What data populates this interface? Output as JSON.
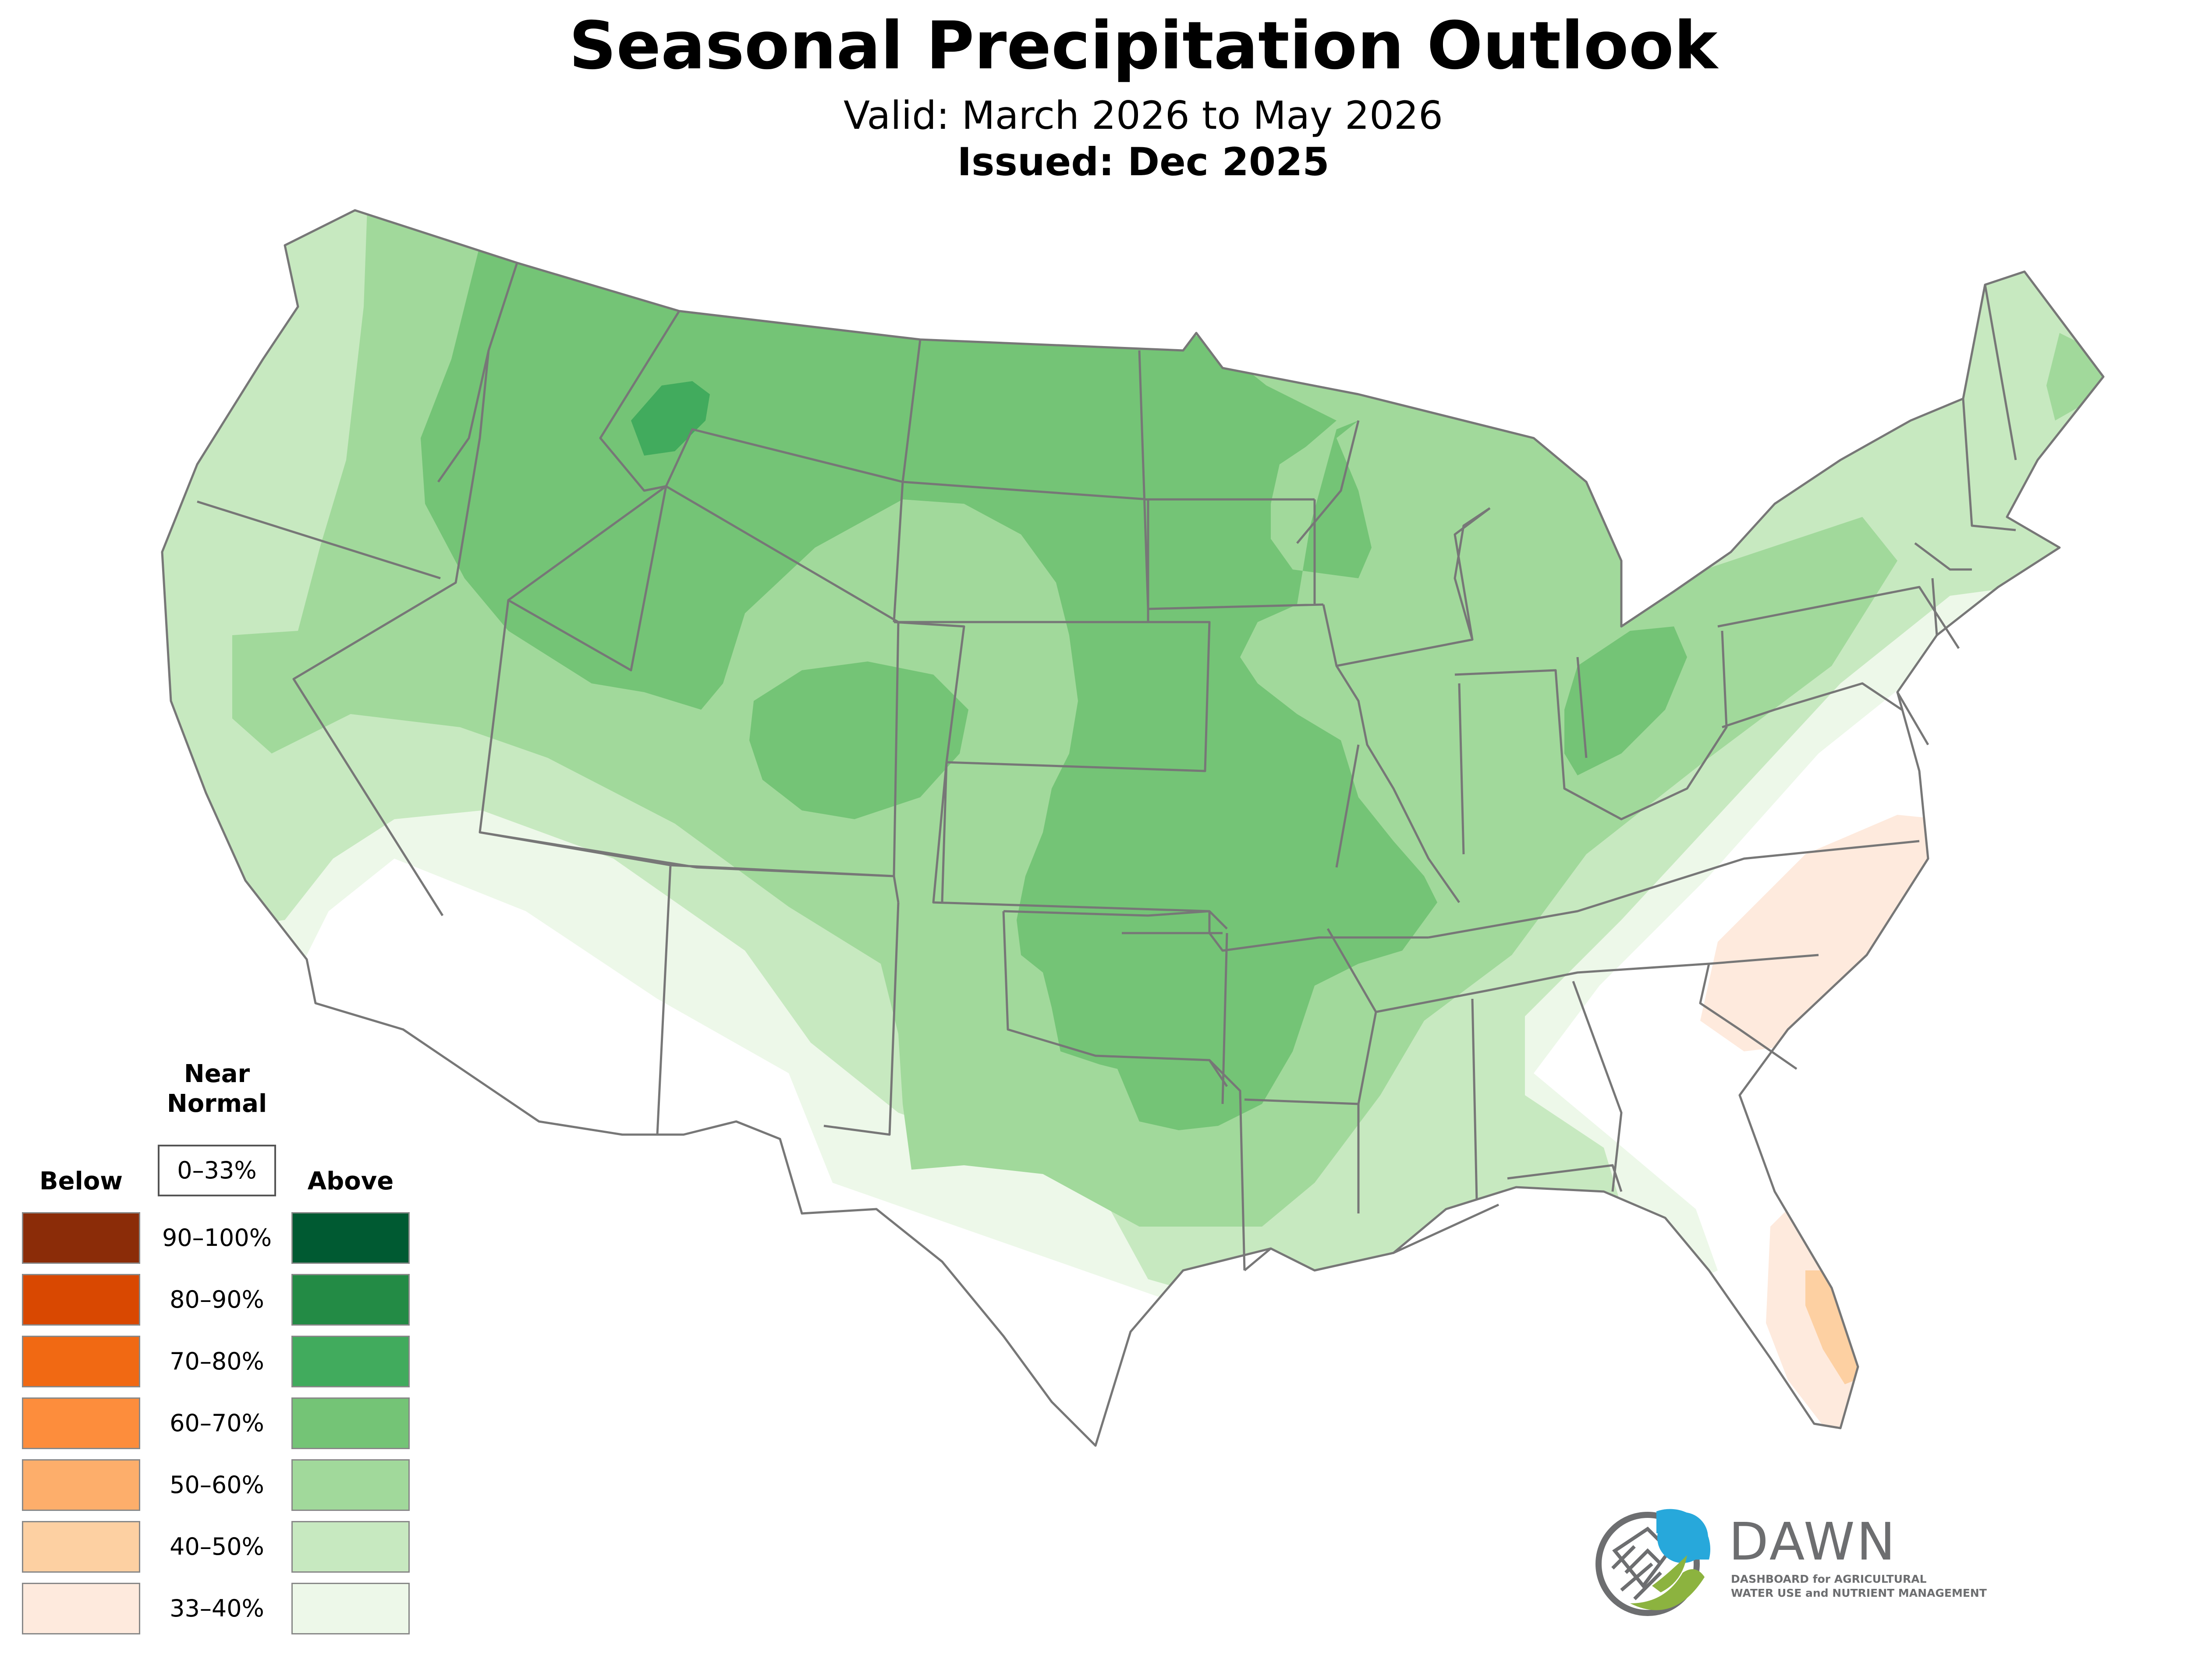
{
  "title": "Seasonal Precipitation Outlook",
  "valid": "Valid: March 2026 to May 2026",
  "issued": "Issued: Dec 2025",
  "legend": {
    "below_label": "Below",
    "near_label_1": "Near",
    "near_label_2": "Normal",
    "near_range": "0–33%",
    "above_label": "Above",
    "ranges": [
      "90–100%",
      "80–90%",
      "70–80%",
      "60–70%",
      "50–60%",
      "40–50%",
      "33–40%"
    ],
    "below_colors": [
      "#8b2c08",
      "#d94801",
      "#f16913",
      "#fd8d3c",
      "#fdae6b",
      "#fdd0a2",
      "#feeadd"
    ],
    "above_colors": [
      "#005a32",
      "#238b45",
      "#41ab5d",
      "#74c476",
      "#a1d99b",
      "#c7e9c0",
      "#edf8e9"
    ]
  },
  "logo": {
    "name": "DAWN",
    "line1": "DASHBOARD for AGRICULTURAL",
    "line2": "WATER USE and NUTRIENT MANAGEMENT"
  }
}
